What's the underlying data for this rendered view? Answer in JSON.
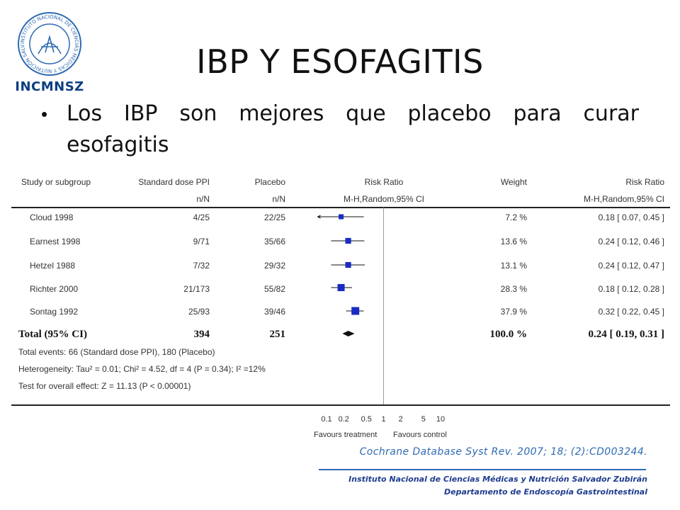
{
  "logo": {
    "text": "INCMNSZ",
    "seal_text": "INSTITUTO NACIONAL DE CIENCIAS MÉDICAS Y NUTRICIÓN SALVADOR ZUBIRÁN"
  },
  "title": "IBP Y ESOFAGITIS",
  "bullet": {
    "line1_words": [
      "Los",
      "IBP",
      "son",
      "mejores",
      "que",
      "placebo",
      "para",
      "curar"
    ],
    "line2": "esofagitis"
  },
  "chart_data": {
    "type": "forest",
    "headers": {
      "study": "Study or subgroup",
      "treatment": "Standard dose PPI",
      "treatment_sub": "n/N",
      "control": "Placebo",
      "control_sub": "n/N",
      "rr": "Risk Ratio",
      "rr_sub": "M-H,Random,95% CI",
      "weight": "Weight",
      "rr2": "Risk Ratio",
      "rr2_sub": "M-H,Random,95% CI"
    },
    "studies": [
      {
        "name": "Cloud 1998",
        "treatment": "4/25",
        "control": "22/25",
        "weight": "7.2 %",
        "ci_text": "0.18 [ 0.07, 0.45 ]",
        "rr": 0.18,
        "lo": 0.07,
        "hi": 0.45,
        "w": 7.2
      },
      {
        "name": "Earnest 1998",
        "treatment": "9/71",
        "control": "35/66",
        "weight": "13.6 %",
        "ci_text": "0.24 [ 0.12, 0.46 ]",
        "rr": 0.24,
        "lo": 0.12,
        "hi": 0.46,
        "w": 13.6
      },
      {
        "name": "Hetzel 1988",
        "treatment": "7/32",
        "control": "29/32",
        "weight": "13.1 %",
        "ci_text": "0.24 [ 0.12, 0.47 ]",
        "rr": 0.24,
        "lo": 0.12,
        "hi": 0.47,
        "w": 13.1
      },
      {
        "name": "Richter 2000",
        "treatment": "21/173",
        "control": "55/82",
        "weight": "28.3 %",
        "ci_text": "0.18 [ 0.12, 0.28 ]",
        "rr": 0.18,
        "lo": 0.12,
        "hi": 0.28,
        "w": 28.3
      },
      {
        "name": "Sontag 1992",
        "treatment": "25/93",
        "control": "39/46",
        "weight": "37.9 %",
        "ci_text": "0.32 [ 0.22, 0.45 ]",
        "rr": 0.32,
        "lo": 0.22,
        "hi": 0.45,
        "w": 37.9
      }
    ],
    "total": {
      "name": "Total (95% CI)",
      "treatment": "394",
      "control": "251",
      "weight": "100.0 %",
      "ci_text": "0.24 [ 0.19, 0.31 ]",
      "rr": 0.24,
      "lo": 0.19,
      "hi": 0.31
    },
    "notes": [
      "Total events: 66 (Standard dose PPI), 180 (Placebo)",
      "Heterogeneity: Tau² = 0.01; Chi² = 4.52, df = 4 (P = 0.34); I² =12%",
      "Test for overall effect: Z = 11.13 (P < 0.00001)"
    ],
    "x_scale": "log",
    "x_ticks": [
      0.1,
      0.2,
      0.5,
      1,
      2,
      5,
      10
    ],
    "x_tick_labels": [
      "0.1",
      "0.2",
      "0.5",
      "1",
      "2",
      "5",
      "10"
    ],
    "favours_left": "Favours treatment",
    "favours_right": "Favours control",
    "marker_color": "#1a2bc4"
  },
  "citation": "Cochrane Database Syst Rev. 2007; 18; (2):CD003244.",
  "footer": {
    "line1": "Instituto Nacional de Ciencias Médicas y Nutrición Salvador Zubirán",
    "line2": "Departamento de Endoscopía Gastrointestinal"
  }
}
